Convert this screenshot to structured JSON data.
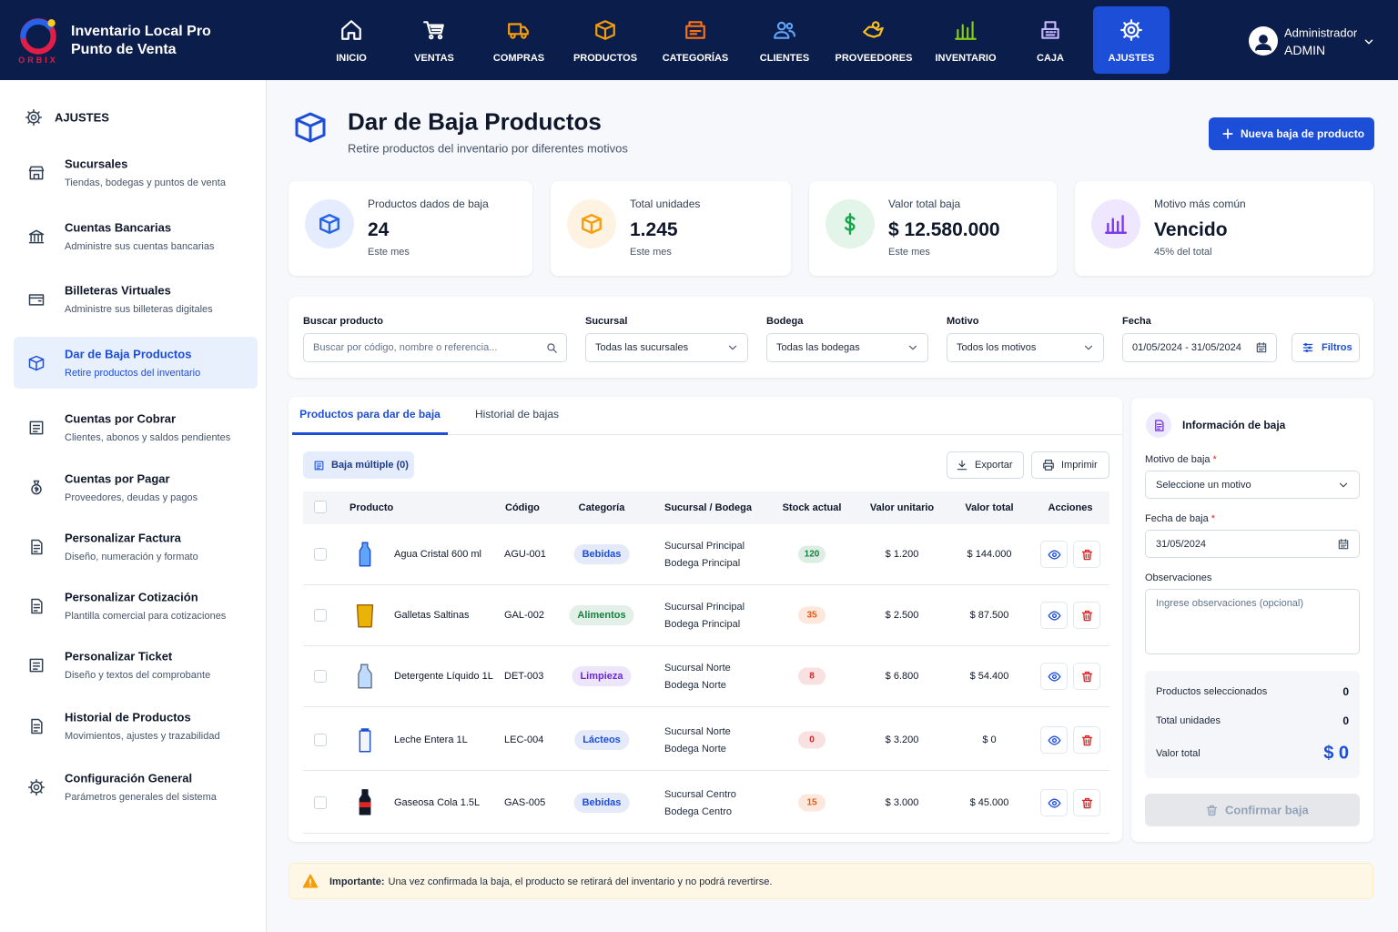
{
  "header": {
    "brand_title": "Inventario Local Pro",
    "brand_subtitle": "Punto de Venta",
    "logo_text": "ORBIX",
    "nav": [
      "INICIO",
      "VENTAS",
      "COMPRAS",
      "PRODUCTOS",
      "CATEGORÍAS",
      "CLIENTES",
      "PROVEEDORES",
      "INVENTARIO",
      "CAJA",
      "AJUSTES"
    ],
    "active_nav": 9,
    "user_role": "Administrador",
    "user_name": "ADMIN"
  },
  "sidebar": {
    "title": "AJUSTES",
    "active_item": 3,
    "items": [
      {
        "title": "Sucursales",
        "subtitle": "Tiendas, bodegas y puntos de venta"
      },
      {
        "title": "Cuentas Bancarias",
        "subtitle": "Administre sus cuentas bancarias"
      },
      {
        "title": "Billeteras Virtuales",
        "subtitle": "Administre sus billeteras digitales"
      },
      {
        "title": "Dar de Baja Productos",
        "subtitle": "Retire productos del inventario"
      },
      {
        "title": "Cuentas por Cobrar",
        "subtitle": "Clientes, abonos y saldos pendientes"
      },
      {
        "title": "Cuentas por Pagar",
        "subtitle": "Proveedores, deudas y pagos"
      },
      {
        "title": "Personalizar Factura",
        "subtitle": "Diseño, numeración y formato"
      },
      {
        "title": "Personalizar Cotización",
        "subtitle": "Plantilla comercial para cotizaciones"
      },
      {
        "title": "Personalizar Ticket",
        "subtitle": "Diseño y textos del comprobante"
      },
      {
        "title": "Historial de Productos",
        "subtitle": "Movimientos, ajustes y trazabilidad"
      },
      {
        "title": "Configuración General",
        "subtitle": "Parámetros generales del sistema"
      }
    ]
  },
  "page": {
    "title": "Dar de Baja Productos",
    "subtitle": "Retire productos del inventario por diferentes motivos",
    "new_button": "Nueva baja de producto"
  },
  "stats": [
    {
      "label": "Productos dados de baja",
      "value": 24,
      "note": "Este mes",
      "color": "#2563eb"
    },
    {
      "label": "Total unidades",
      "value": "1.245",
      "note": "Este mes",
      "color": "#f59e0b"
    },
    {
      "label": "Valor total baja",
      "value": "$ 12.580.000",
      "note": "Este mes",
      "color": "#16a34a"
    },
    {
      "label": "Motivo más común",
      "value": "Vencido",
      "note": "45% del total",
      "color": "#7c3aed"
    }
  ],
  "filters": {
    "search_label": "Buscar producto",
    "search_placeholder": "Buscar por código, nombre o referencia...",
    "branch_label": "Sucursal",
    "branch_value": "Todas las sucursales",
    "warehouse_label": "Bodega",
    "warehouse_value": "Todas las bodegas",
    "reason_label": "Motivo",
    "reason_value": "Todos los motivos",
    "date_label": "Fecha",
    "date_value": "01/05/2024 - 31/05/2024",
    "filters_button": "Filtros"
  },
  "tabs": [
    "Productos para dar de baja",
    "Historial de bajas"
  ],
  "active_tab": 0,
  "actions": {
    "bulk": "Baja múltiple (0)",
    "export": "Exportar",
    "print": "Imprimir"
  },
  "table": {
    "columns": [
      "Producto",
      "Código",
      "Categoría",
      "Sucursal / Bodega",
      "Stock actual",
      "Valor unitario",
      "Valor total",
      "Acciones"
    ],
    "rows": [
      {
        "product": "Agua Cristal 600 ml",
        "code": "AGU-001",
        "category": "Bebidas",
        "category_color": "#1d4ed8",
        "branch": "Sucursal Principal",
        "warehouse": "Bodega Principal",
        "stock": 120,
        "stock_color": "#15803d",
        "unit_value": "$ 1.200",
        "total_value": "$ 144.000"
      },
      {
        "product": "Galletas Saltinas",
        "code": "GAL-002",
        "category": "Alimentos",
        "category_color": "#15803d",
        "branch": "Sucursal Principal",
        "warehouse": "Bodega Principal",
        "stock": 35,
        "stock_color": "#ea580c",
        "unit_value": "$ 2.500",
        "total_value": "$ 87.500"
      },
      {
        "product": "Detergente Líquido 1L",
        "code": "DET-003",
        "category": "Limpieza",
        "category_color": "#6d28d9",
        "branch": "Sucursal Norte",
        "warehouse": "Bodega Norte",
        "stock": 8,
        "stock_color": "#dc2626",
        "unit_value": "$ 6.800",
        "total_value": "$ 54.400"
      },
      {
        "product": "Leche Entera 1L",
        "code": "LEC-004",
        "category": "Lácteos",
        "category_color": "#1d4ed8",
        "branch": "Sucursal Norte",
        "warehouse": "Bodega Norte",
        "stock": 0,
        "stock_color": "#dc2626",
        "unit_value": "$ 3.200",
        "total_value": "$ 0"
      },
      {
        "product": "Gaseosa Cola 1.5L",
        "code": "GAS-005",
        "category": "Bebidas",
        "category_color": "#1d4ed8",
        "branch": "Sucursal Centro",
        "warehouse": "Bodega Centro",
        "stock": 15,
        "stock_color": "#ea580c",
        "unit_value": "$ 3.000",
        "total_value": "$ 45.000"
      }
    ]
  },
  "panel": {
    "title": "Información de baja",
    "reason_label": "Motivo de baja",
    "required_mark": "*",
    "reason_placeholder": "Seleccione un motivo",
    "date_label": "Fecha de baja",
    "date_value": "31/05/2024",
    "notes_label": "Observaciones",
    "notes_placeholder": "Ingrese observaciones (opcional)",
    "summary": [
      {
        "label": "Productos seleccionados",
        "value": 0
      },
      {
        "label": "Total unidades",
        "value": 0
      },
      {
        "label": "Valor total",
        "value": "$ 0"
      }
    ],
    "confirm_button": "Confirmar baja"
  },
  "notice": {
    "strong": "Importante:",
    "text": "Una vez confirmada la baja, el producto se retirará del inventario y no podrá revertirse."
  }
}
